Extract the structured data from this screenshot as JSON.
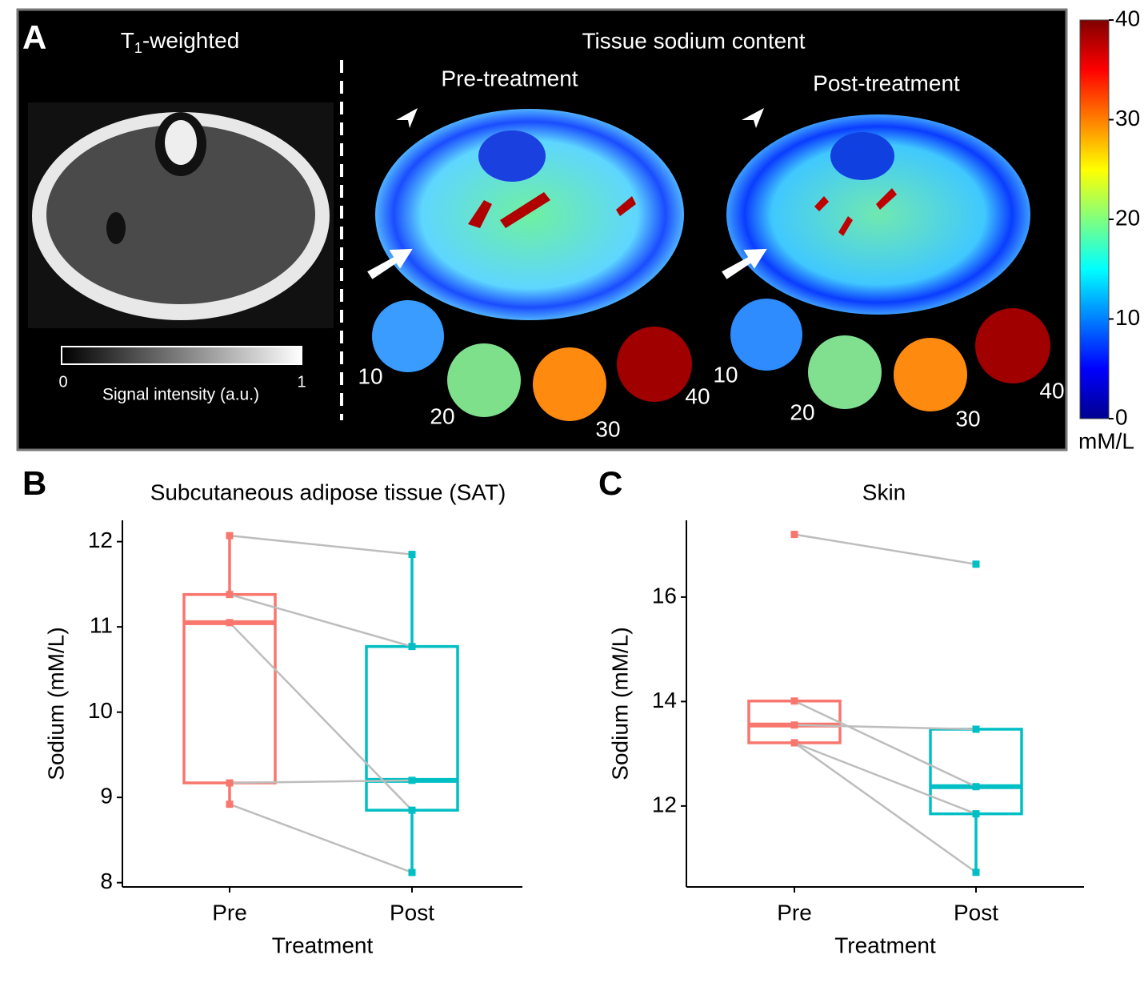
{
  "panel_a": {
    "label": "A",
    "t1_title": {
      "main": "T",
      "sub": "1",
      "rest": "-weighted"
    },
    "sodium_title": "Tissue sodium content",
    "pre_title": "Pre-treatment",
    "post_title": "Post-treatment",
    "gray_bar": {
      "min_label": "0",
      "max_label": "1",
      "label": "Signal intensity (a.u.)"
    },
    "pre_phantoms": [
      "10",
      "20",
      "30",
      "40"
    ],
    "post_phantoms": [
      "10",
      "20",
      "30",
      "40"
    ],
    "colorbar": {
      "range": [
        0,
        40
      ],
      "ticks": [
        0,
        10,
        20,
        30,
        40
      ],
      "unit": "mM/L"
    }
  },
  "chart_data": [
    {
      "type": "box",
      "panel": "B",
      "title": "Subcutaneous adipose tissue (SAT)",
      "x_label": "Treatment",
      "y_label": "Sodium (mM/L)",
      "categories": [
        "Pre",
        "Post"
      ],
      "ylim": [
        7.95,
        12.25
      ],
      "yticks": [
        8,
        9,
        10,
        11,
        12
      ],
      "paired_line_color": "#bdbdbd",
      "groups": [
        {
          "color": "#f8766d",
          "values": [
            12.07,
            11.38,
            11.05,
            9.17,
            8.92
          ],
          "whisker_low": 8.92,
          "q1": 9.17,
          "median": 11.05,
          "q3": 11.38,
          "whisker_high": 12.07
        },
        {
          "color": "#00bfc4",
          "values": [
            11.85,
            10.77,
            8.85,
            9.2,
            8.12
          ],
          "whisker_low": 8.12,
          "q1": 8.85,
          "median": 9.2,
          "q3": 10.77,
          "whisker_high": 11.85
        }
      ]
    },
    {
      "type": "box",
      "panel": "C",
      "title": "Skin",
      "x_label": "Treatment",
      "y_label": "Sodium (mM/L)",
      "categories": [
        "Pre",
        "Post"
      ],
      "ylim": [
        10.45,
        17.47
      ],
      "yticks": [
        12,
        14,
        16
      ],
      "paired_line_color": "#bdbdbd",
      "groups": [
        {
          "color": "#f8766d",
          "values": [
            17.2,
            14.01,
            13.55,
            13.21,
            13.21
          ],
          "whisker_low": 13.21,
          "q1": 13.21,
          "median": 13.55,
          "q3": 14.01,
          "whisker_high": 14.01
        },
        {
          "color": "#00bfc4",
          "values": [
            16.63,
            12.37,
            13.47,
            10.73,
            11.85
          ],
          "whisker_low": 10.73,
          "q1": 11.85,
          "median": 12.37,
          "q3": 13.47,
          "whisker_high": 13.47
        }
      ]
    }
  ]
}
